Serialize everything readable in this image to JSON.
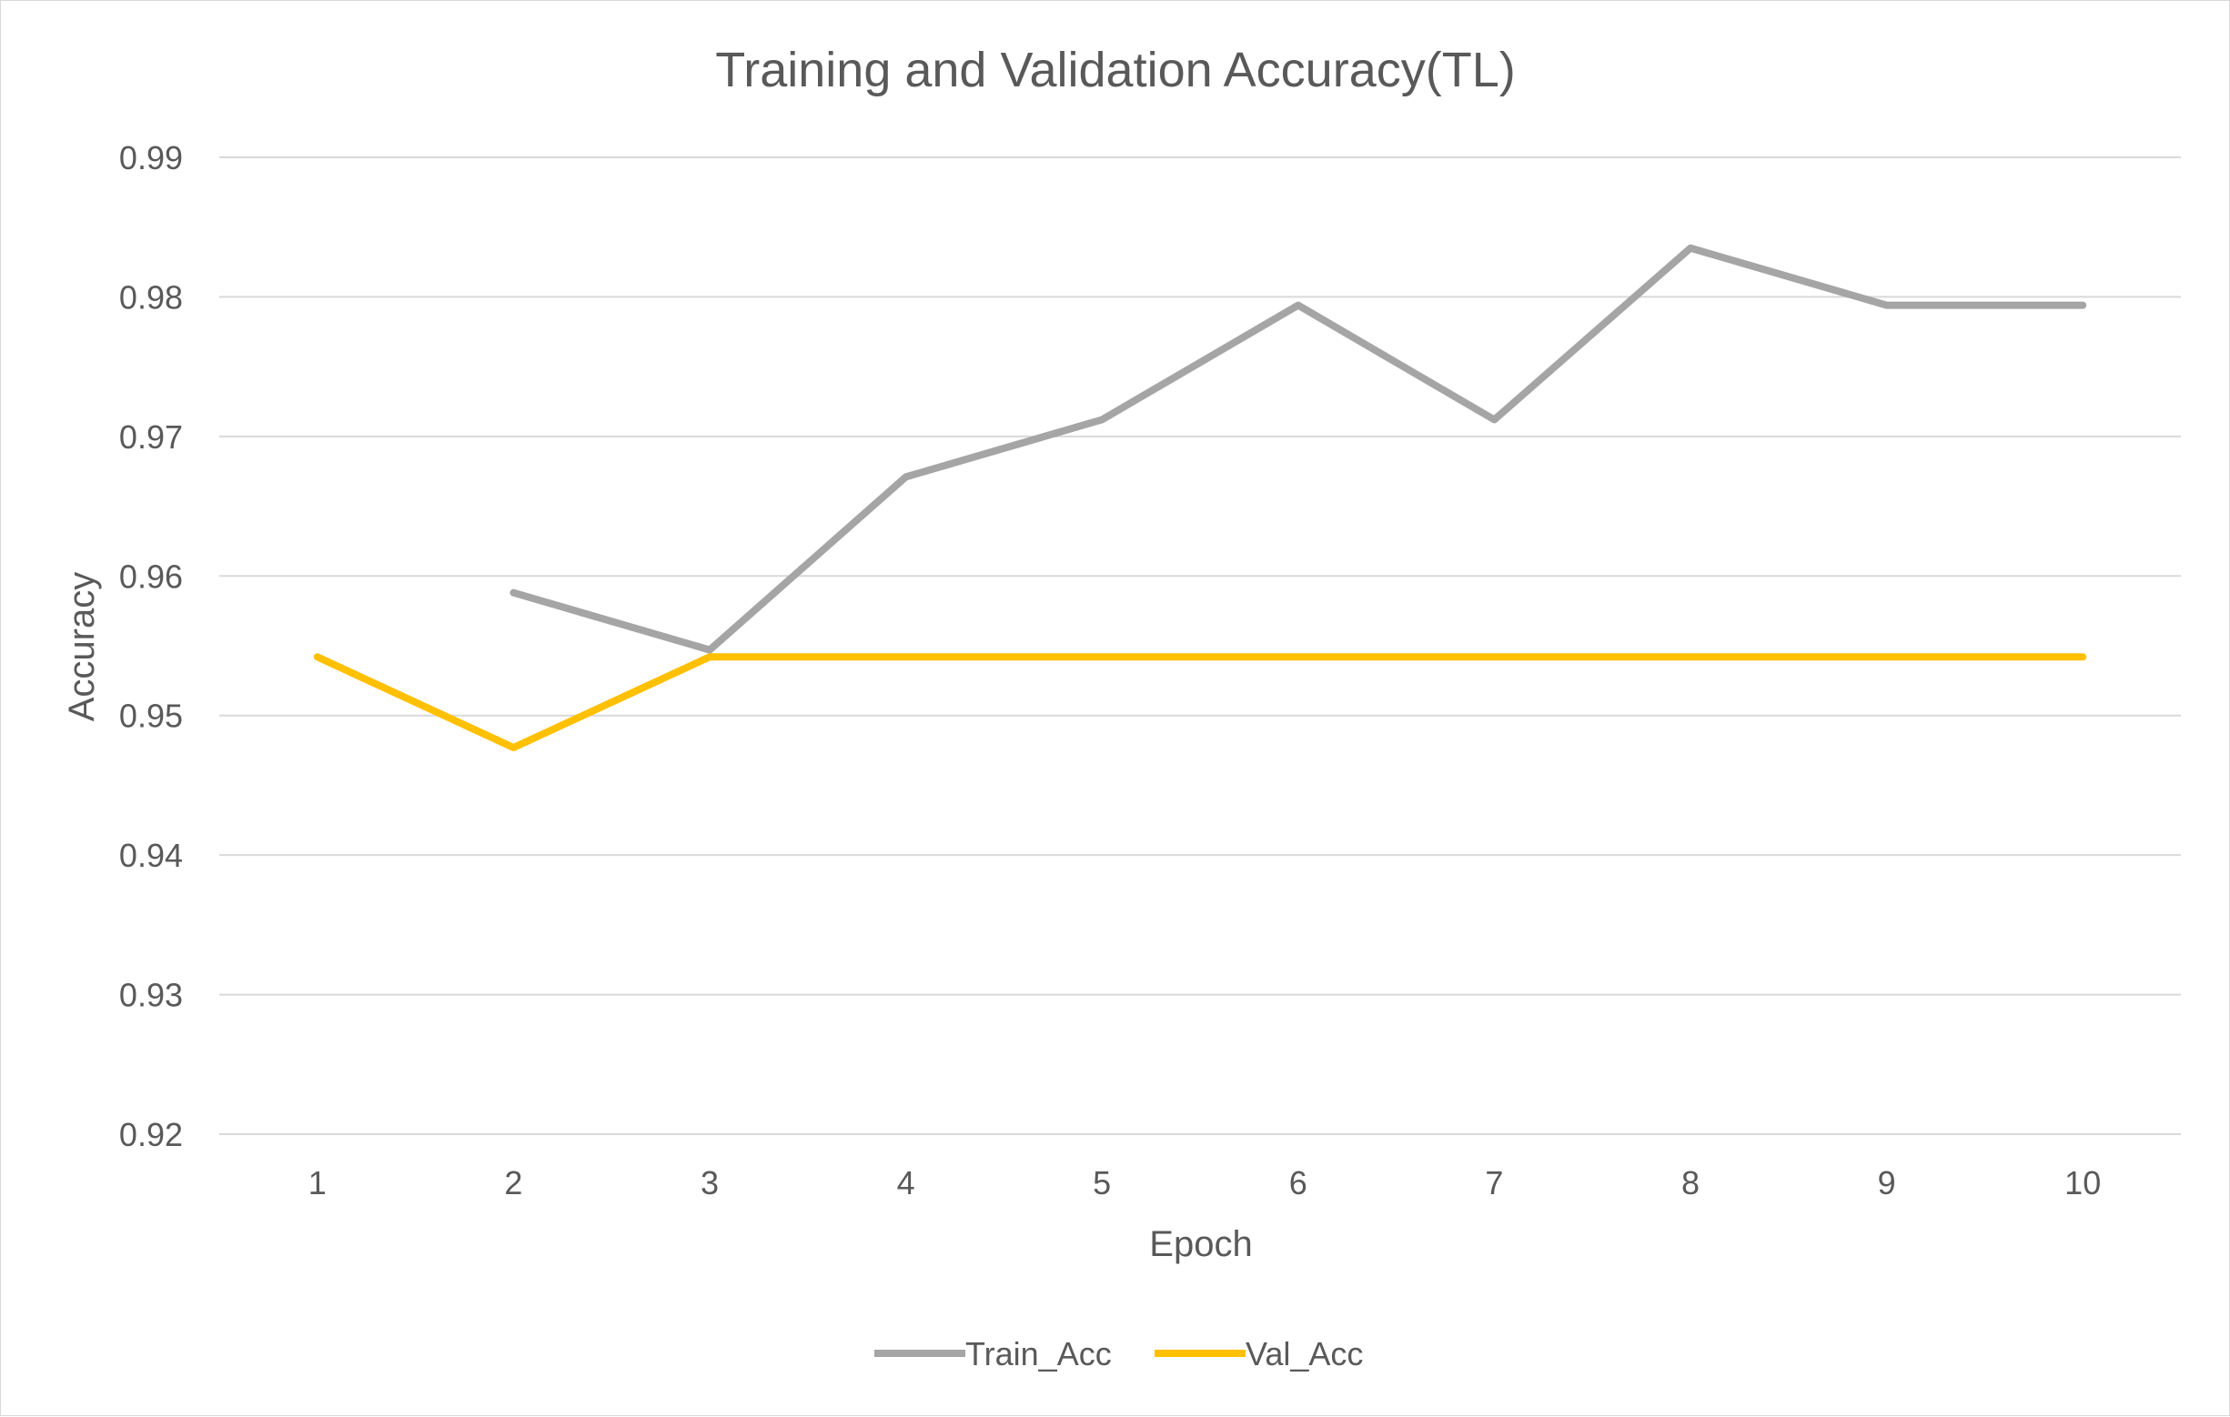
{
  "chart_data": {
    "type": "line",
    "title": "Training and Validation Accuracy(TL)",
    "xlabel": "Epoch",
    "ylabel": "Accuracy",
    "categories": [
      "1",
      "2",
      "3",
      "4",
      "5",
      "6",
      "7",
      "8",
      "9",
      "10"
    ],
    "ylim": [
      0.92,
      0.99
    ],
    "yticks": [
      "0.92",
      "0.93",
      "0.94",
      "0.95",
      "0.96",
      "0.97",
      "0.98",
      "0.99"
    ],
    "grid": true,
    "legend": "bottom",
    "series": [
      {
        "name": "Train_Acc",
        "color": "#a5a5a5",
        "values": [
          null,
          0.9588,
          0.9547,
          0.9671,
          0.9712,
          0.9794,
          0.9712,
          0.9835,
          0.9794,
          0.9794
        ]
      },
      {
        "name": "Val_Acc",
        "color": "#ffc000",
        "values": [
          0.9542,
          0.9477,
          0.9542,
          0.9542,
          0.9542,
          0.9542,
          0.9542,
          0.9542,
          0.9542,
          0.9542
        ]
      }
    ]
  }
}
